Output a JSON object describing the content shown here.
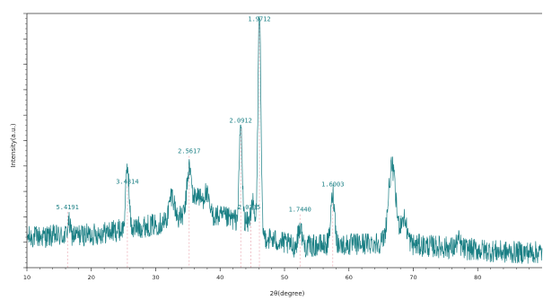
{
  "chart_data": {
    "type": "line",
    "xlabel": "2θ(degree)",
    "ylabel": "Intensity(a.u.)",
    "xlim": [
      10,
      90
    ],
    "x_ticks": [
      10,
      20,
      30,
      40,
      50,
      60,
      70,
      80
    ],
    "grid": false,
    "line_color": "#1a7f84",
    "peak_label_color": "#1a7f84",
    "guide_color": "#e79aa5",
    "noise_amplitude": 0.045,
    "baseline": [
      [
        10,
        0.12
      ],
      [
        20,
        0.13
      ],
      [
        25,
        0.15
      ],
      [
        30,
        0.17
      ],
      [
        33,
        0.19
      ],
      [
        36,
        0.22
      ],
      [
        40,
        0.2
      ],
      [
        44,
        0.18
      ],
      [
        47,
        0.12
      ],
      [
        52,
        0.08
      ],
      [
        56,
        0.09
      ],
      [
        60,
        0.09
      ],
      [
        65,
        0.1
      ],
      [
        70,
        0.09
      ],
      [
        75,
        0.08
      ],
      [
        80,
        0.07
      ],
      [
        85,
        0.06
      ],
      [
        90,
        0.06
      ]
    ],
    "peaks": [
      {
        "x": 16.5,
        "height": 0.05,
        "width": 0.2
      },
      {
        "x": 25.6,
        "height": 0.25,
        "width": 0.25
      },
      {
        "x": 32.5,
        "height": 0.1,
        "width": 0.4
      },
      {
        "x": 35.2,
        "height": 0.18,
        "width": 0.35
      },
      {
        "x": 36.5,
        "height": 0.07,
        "width": 0.5
      },
      {
        "x": 37.8,
        "height": 0.08,
        "width": 0.4
      },
      {
        "x": 43.2,
        "height": 0.38,
        "width": 0.22
      },
      {
        "x": 45.0,
        "height": 0.1,
        "width": 0.25
      },
      {
        "x": 46.1,
        "height": 0.88,
        "width": 0.22
      },
      {
        "x": 52.4,
        "height": 0.08,
        "width": 0.3
      },
      {
        "x": 57.5,
        "height": 0.2,
        "width": 0.3
      },
      {
        "x": 66.7,
        "height": 0.3,
        "width": 0.55
      },
      {
        "x": 68.5,
        "height": 0.1,
        "width": 0.5
      },
      {
        "x": 77.0,
        "height": 0.03,
        "width": 0.3
      }
    ],
    "peak_labels": [
      {
        "text": "5.4191",
        "x": 16.3,
        "y": 0.23,
        "guide_x": 16.3
      },
      {
        "text": "3.4814",
        "x": 25.6,
        "y": 0.33,
        "guide_x": 25.6
      },
      {
        "text": "2.5617",
        "x": 35.2,
        "y": 0.45,
        "guide_x": 35.2
      },
      {
        "text": "2.0912",
        "x": 43.2,
        "y": 0.57,
        "guide_x": 43.2
      },
      {
        "text": "2.0335",
        "x": 44.5,
        "y": 0.23,
        "guide_x": 44.8
      },
      {
        "text": "1.9712",
        "x": 46.1,
        "y": 0.97,
        "guide_x": 46.1
      },
      {
        "text": "1.7440",
        "x": 52.4,
        "y": 0.22,
        "guide_x": 52.4
      },
      {
        "text": "1.6003",
        "x": 57.5,
        "y": 0.32,
        "guide_x": 57.5
      }
    ]
  }
}
